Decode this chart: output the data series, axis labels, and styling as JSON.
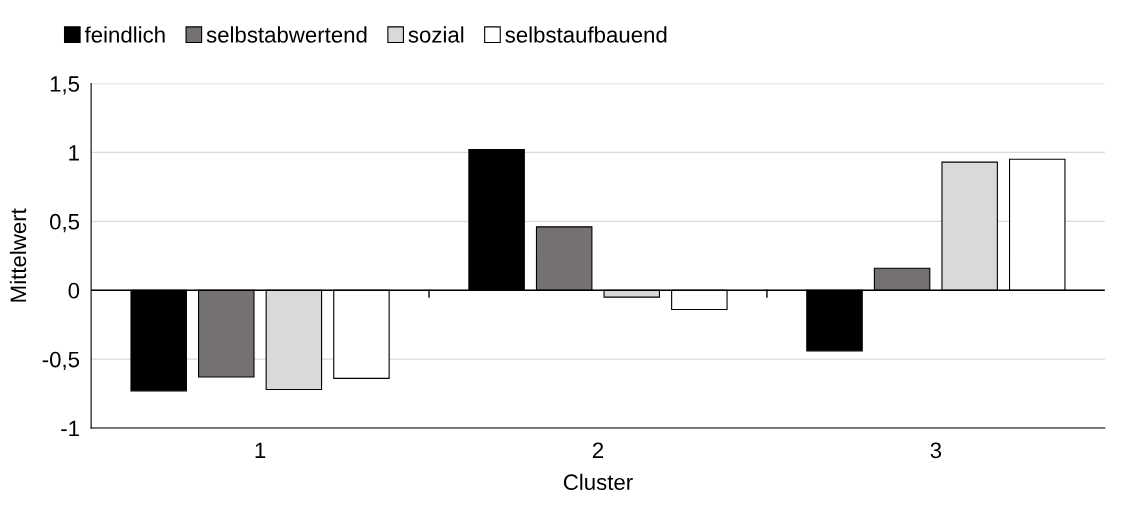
{
  "chart_data": {
    "type": "bar",
    "xlabel": "Cluster",
    "ylabel": "Mittelwert",
    "categories": [
      "1",
      "2",
      "3"
    ],
    "series": [
      {
        "name": "feindlich",
        "color": "#000000",
        "values": [
          -0.73,
          1.02,
          -0.44
        ]
      },
      {
        "name": "selbstabwertend",
        "color": "#767171",
        "values": [
          -0.63,
          0.46,
          0.16
        ]
      },
      {
        "name": "sozial",
        "color": "#d9d9d9",
        "values": [
          -0.72,
          -0.05,
          0.93
        ]
      },
      {
        "name": "selbstaufbauend",
        "color": "#ffffff",
        "values": [
          -0.64,
          -0.14,
          0.95
        ]
      }
    ],
    "ylim": [
      -1,
      1.5
    ],
    "yticks": [
      -1,
      {
        "value": -0.5,
        "label": "-0,5"
      },
      0,
      {
        "value": 0.5,
        "label": "0,5"
      },
      1,
      {
        "value": 1.5,
        "label": "1,5"
      }
    ],
    "grid": "y",
    "legend": "top"
  }
}
